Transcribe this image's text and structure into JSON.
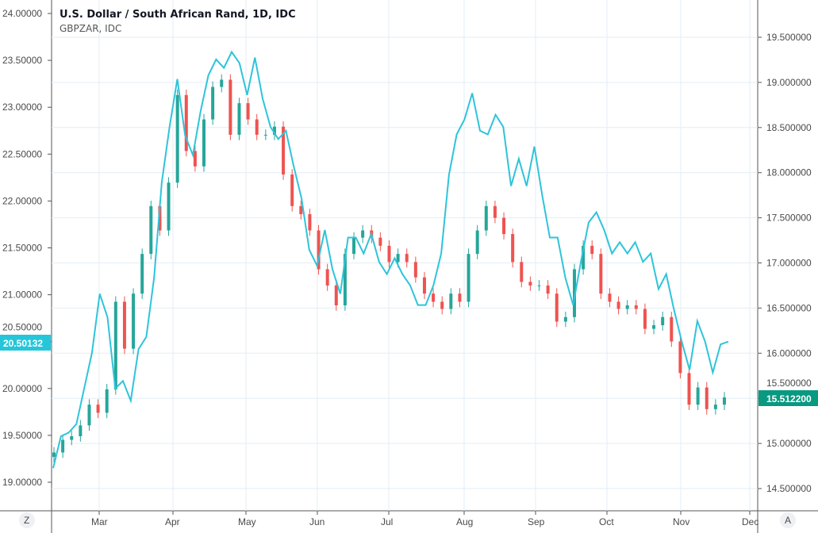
{
  "chart_data": {
    "type": "candlestick+line",
    "title": "U.S. Dollar / South African Rand, 1D, IDC",
    "subtitle": "GBPZAR, IDC",
    "x_ticks": [
      "Mar",
      "Apr",
      "May",
      "Jun",
      "Jul",
      "Aug",
      "Sep",
      "Oct",
      "Nov",
      "Dec"
    ],
    "left_axis": {
      "ticks": [
        "19.00000",
        "19.50000",
        "20.00000",
        "20.50000",
        "21.00000",
        "21.50000",
        "22.00000",
        "22.50000",
        "23.00000",
        "23.50000",
        "24.00000"
      ],
      "range": [
        18.95,
        24.05
      ],
      "last_label": "20.50132",
      "last_value": 20.50132
    },
    "right_axis": {
      "ticks": [
        "14.500000",
        "15.000000",
        "15.500000",
        "16.000000",
        "16.500000",
        "17.000000",
        "17.500000",
        "18.000000",
        "18.500000",
        "19.000000",
        "19.500000"
      ],
      "range": [
        14.35,
        19.85
      ],
      "last_label": "15.512200",
      "last_value": 15.5122
    },
    "series": [
      {
        "name": "USDZAR",
        "type": "candlestick",
        "axis": "right",
        "up_color": "#26a69a",
        "down_color": "#ef5350",
        "closes": [
          14.9,
          15.04,
          15.08,
          15.2,
          15.43,
          15.34,
          15.6,
          16.57,
          16.05,
          16.66,
          17.1,
          17.63,
          17.36,
          17.89,
          18.86,
          18.24,
          18.07,
          18.59,
          18.95,
          19.03,
          18.42,
          18.77,
          18.59,
          18.42,
          18.42,
          18.51,
          17.98,
          17.63,
          17.54,
          17.36,
          16.93,
          16.75,
          16.53,
          17.1,
          17.28,
          17.36,
          17.28,
          17.19,
          17.01,
          17.1,
          17.01,
          16.84,
          16.66,
          16.57,
          16.49,
          16.66,
          16.57,
          17.1,
          17.36,
          17.63,
          17.5,
          17.32,
          17.01,
          16.79,
          16.75,
          16.75,
          16.66,
          16.35,
          16.4,
          16.93,
          17.19,
          17.1,
          16.66,
          16.57,
          16.49,
          16.53,
          16.49,
          16.27,
          16.31,
          16.4,
          16.13,
          15.78,
          15.43,
          15.62,
          15.38,
          15.43,
          15.51
        ]
      },
      {
        "name": "GBPZAR",
        "type": "line",
        "axis": "left",
        "color": "#2ec4da",
        "values": [
          19.15,
          19.49,
          19.53,
          19.62,
          20.0,
          20.38,
          21.01,
          20.76,
          20.0,
          20.08,
          19.87,
          20.42,
          20.55,
          21.18,
          22.2,
          22.79,
          23.3,
          22.7,
          22.49,
          22.96,
          23.34,
          23.51,
          23.42,
          23.59,
          23.47,
          23.13,
          23.53,
          23.09,
          22.79,
          22.66,
          22.75,
          22.37,
          22.03,
          21.48,
          21.31,
          21.69,
          21.27,
          21.01,
          21.61,
          21.61,
          21.44,
          21.65,
          21.35,
          21.22,
          21.39,
          21.22,
          21.1,
          20.89,
          20.89,
          21.1,
          21.44,
          22.28,
          22.71,
          22.87,
          23.15,
          22.75,
          22.71,
          22.92,
          22.79,
          22.16,
          22.45,
          22.16,
          22.58,
          22.07,
          21.61,
          21.61,
          21.18,
          20.89,
          21.35,
          21.77,
          21.88,
          21.69,
          21.44,
          21.56,
          21.44,
          21.56,
          21.35,
          21.44,
          21.06,
          21.22,
          20.84,
          20.5,
          20.2,
          20.72,
          20.5,
          20.17,
          20.47,
          20.5
        ]
      }
    ],
    "grid": true,
    "footer": {
      "left_button": "Z",
      "right_button": "A"
    }
  }
}
